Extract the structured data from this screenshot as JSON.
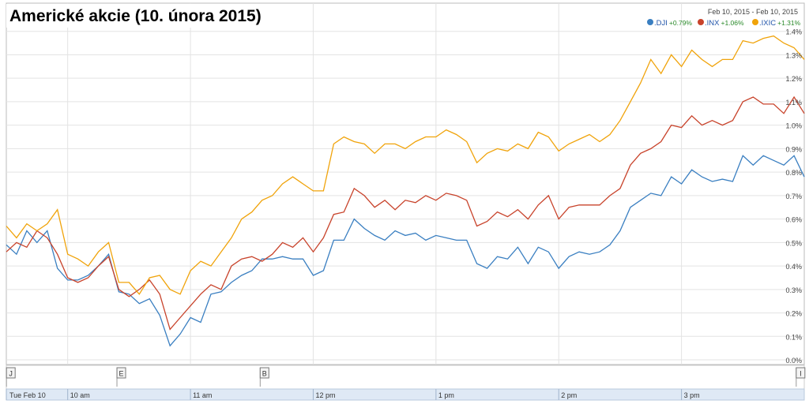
{
  "chart_data": {
    "type": "line",
    "title": "Americké akcie (10. února 2015)",
    "date_range": "Feb 10, 2015 - Feb 10, 2015",
    "x": [
      570,
      575,
      580,
      585,
      590,
      595,
      600,
      605,
      610,
      615,
      620,
      625,
      630,
      635,
      640,
      645,
      650,
      655,
      660,
      665,
      670,
      675,
      680,
      685,
      690,
      695,
      700,
      705,
      710,
      715,
      720,
      725,
      730,
      735,
      740,
      745,
      750,
      755,
      760,
      765,
      770,
      775,
      780,
      785,
      790,
      795,
      800,
      805,
      810,
      815,
      820,
      825,
      830,
      835,
      840,
      845,
      850,
      855,
      860,
      865,
      870,
      875,
      880,
      885,
      890,
      895,
      900,
      905,
      910,
      915,
      920,
      925,
      930,
      935,
      940,
      945,
      950,
      955,
      960
    ],
    "series": [
      {
        "name": ".DJI",
        "change_label": "+0.79%",
        "color": "#3a7fc1",
        "values": [
          0.49,
          0.45,
          0.55,
          0.5,
          0.55,
          0.39,
          0.34,
          0.34,
          0.36,
          0.4,
          0.45,
          0.29,
          0.28,
          0.24,
          0.26,
          0.19,
          0.06,
          0.11,
          0.18,
          0.16,
          0.28,
          0.29,
          0.33,
          0.36,
          0.38,
          0.43,
          0.43,
          0.44,
          0.43,
          0.43,
          0.36,
          0.38,
          0.51,
          0.51,
          0.6,
          0.56,
          0.53,
          0.51,
          0.55,
          0.53,
          0.54,
          0.51,
          0.53,
          0.52,
          0.51,
          0.51,
          0.41,
          0.39,
          0.44,
          0.43,
          0.48,
          0.41,
          0.48,
          0.46,
          0.39,
          0.44,
          0.46,
          0.45,
          0.46,
          0.49,
          0.55,
          0.65,
          0.68,
          0.71,
          0.7,
          0.78,
          0.75,
          0.81,
          0.78,
          0.76,
          0.77,
          0.76,
          0.87,
          0.83,
          0.87,
          0.85,
          0.83,
          0.87,
          0.78
        ]
      },
      {
        "name": ".INX",
        "change_label": "+1.06%",
        "color": "#c8432b",
        "values": [
          0.46,
          0.5,
          0.48,
          0.55,
          0.52,
          0.45,
          0.35,
          0.33,
          0.35,
          0.4,
          0.44,
          0.3,
          0.27,
          0.3,
          0.34,
          0.28,
          0.13,
          0.18,
          0.23,
          0.28,
          0.32,
          0.3,
          0.4,
          0.43,
          0.44,
          0.42,
          0.45,
          0.5,
          0.48,
          0.52,
          0.46,
          0.52,
          0.62,
          0.63,
          0.73,
          0.7,
          0.65,
          0.68,
          0.64,
          0.68,
          0.67,
          0.7,
          0.68,
          0.71,
          0.7,
          0.68,
          0.57,
          0.59,
          0.63,
          0.61,
          0.64,
          0.6,
          0.66,
          0.7,
          0.6,
          0.65,
          0.66,
          0.66,
          0.66,
          0.7,
          0.73,
          0.83,
          0.88,
          0.9,
          0.93,
          1.0,
          0.99,
          1.04,
          1.0,
          1.02,
          1.0,
          1.02,
          1.1,
          1.12,
          1.09,
          1.09,
          1.05,
          1.12,
          1.05
        ]
      },
      {
        "name": ".IXIC",
        "change_label": "+1.31%",
        "color": "#f0a30a",
        "values": [
          0.57,
          0.52,
          0.58,
          0.55,
          0.58,
          0.64,
          0.45,
          0.43,
          0.4,
          0.46,
          0.5,
          0.33,
          0.33,
          0.28,
          0.35,
          0.36,
          0.3,
          0.28,
          0.38,
          0.42,
          0.4,
          0.46,
          0.52,
          0.6,
          0.63,
          0.68,
          0.7,
          0.75,
          0.78,
          0.75,
          0.72,
          0.72,
          0.92,
          0.95,
          0.93,
          0.92,
          0.88,
          0.92,
          0.92,
          0.9,
          0.93,
          0.95,
          0.95,
          0.98,
          0.96,
          0.93,
          0.84,
          0.88,
          0.9,
          0.89,
          0.92,
          0.9,
          0.97,
          0.95,
          0.89,
          0.92,
          0.94,
          0.96,
          0.93,
          0.96,
          1.02,
          1.1,
          1.18,
          1.28,
          1.22,
          1.3,
          1.25,
          1.32,
          1.28,
          1.25,
          1.28,
          1.28,
          1.36,
          1.35,
          1.37,
          1.38,
          1.35,
          1.33,
          1.28
        ]
      }
    ],
    "xlim": [
      570,
      960
    ],
    "xticks": [
      {
        "value": 570,
        "label": "Tue Feb 10"
      },
      {
        "value": 600,
        "label": "10 am"
      },
      {
        "value": 660,
        "label": "11 am"
      },
      {
        "value": 720,
        "label": "12 pm"
      },
      {
        "value": 780,
        "label": "1 pm"
      },
      {
        "value": 840,
        "label": "2 pm"
      },
      {
        "value": 900,
        "label": "3 pm"
      }
    ],
    "ylim": [
      -0.02,
      1.52
    ],
    "yticks": [
      {
        "value": 0,
        "label": "0.0%"
      },
      {
        "value": 0.1,
        "label": "0.1%"
      },
      {
        "value": 0.2,
        "label": "0.2%"
      },
      {
        "value": 0.3,
        "label": "0.3%"
      },
      {
        "value": 0.4,
        "label": "0.4%"
      },
      {
        "value": 0.5,
        "label": "0.5%"
      },
      {
        "value": 0.6,
        "label": "0.6%"
      },
      {
        "value": 0.7,
        "label": "0.7%"
      },
      {
        "value": 0.8,
        "label": "0.8%"
      },
      {
        "value": 0.9,
        "label": "0.9%"
      },
      {
        "value": 1.0,
        "label": "1.0%"
      },
      {
        "value": 1.1,
        "label": "1.1%"
      },
      {
        "value": 1.2,
        "label": "1.2%"
      },
      {
        "value": 1.3,
        "label": "1.3%"
      },
      {
        "value": 1.4,
        "label": "1.4%"
      }
    ],
    "grid": true,
    "flags": [
      {
        "label": "J",
        "x": 572
      },
      {
        "label": "E",
        "x": 626
      },
      {
        "label": "B",
        "x": 696
      },
      {
        "label": "I",
        "x": 958
      }
    ]
  }
}
